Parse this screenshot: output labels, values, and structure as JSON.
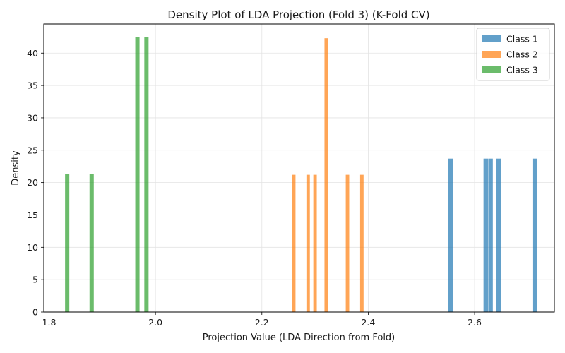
{
  "chart_data": {
    "type": "bar",
    "title": "Density Plot of LDA Projection (Fold 3) (K-Fold CV)",
    "xlabel": "Projection Value (LDA Direction from Fold)",
    "ylabel": "Density",
    "xlim": [
      1.79,
      2.75
    ],
    "ylim": [
      0,
      44.5
    ],
    "xticks": [
      1.8,
      2.0,
      2.2,
      2.4,
      2.6
    ],
    "xtick_labels": [
      "1.8",
      "2.0",
      "2.2",
      "2.4",
      "2.6"
    ],
    "yticks": [
      0,
      5,
      10,
      15,
      20,
      25,
      30,
      35,
      40
    ],
    "ytick_labels": [
      "0",
      "5",
      "10",
      "15",
      "20",
      "25",
      "30",
      "35",
      "40"
    ],
    "grid": true,
    "legend_position": "top-right",
    "series": [
      {
        "name": "Class 1",
        "color": "#1f77b4",
        "bar_width": 0.0085,
        "x": [
          2.555,
          2.621,
          2.63,
          2.645,
          2.713
        ],
        "values": [
          23.7,
          23.7,
          23.7,
          23.7,
          23.7
        ]
      },
      {
        "name": "Class 2",
        "color": "#ff7f0e",
        "bar_width": 0.0065,
        "x": [
          2.26,
          2.287,
          2.3,
          2.321,
          2.361,
          2.388
        ],
        "values": [
          21.2,
          21.2,
          21.2,
          42.3,
          21.2,
          21.2
        ]
      },
      {
        "name": "Class 3",
        "color": "#2ca02c",
        "bar_width": 0.008,
        "x": [
          1.834,
          1.88,
          1.966,
          1.983
        ],
        "values": [
          21.3,
          21.3,
          42.5,
          42.5
        ]
      }
    ]
  }
}
